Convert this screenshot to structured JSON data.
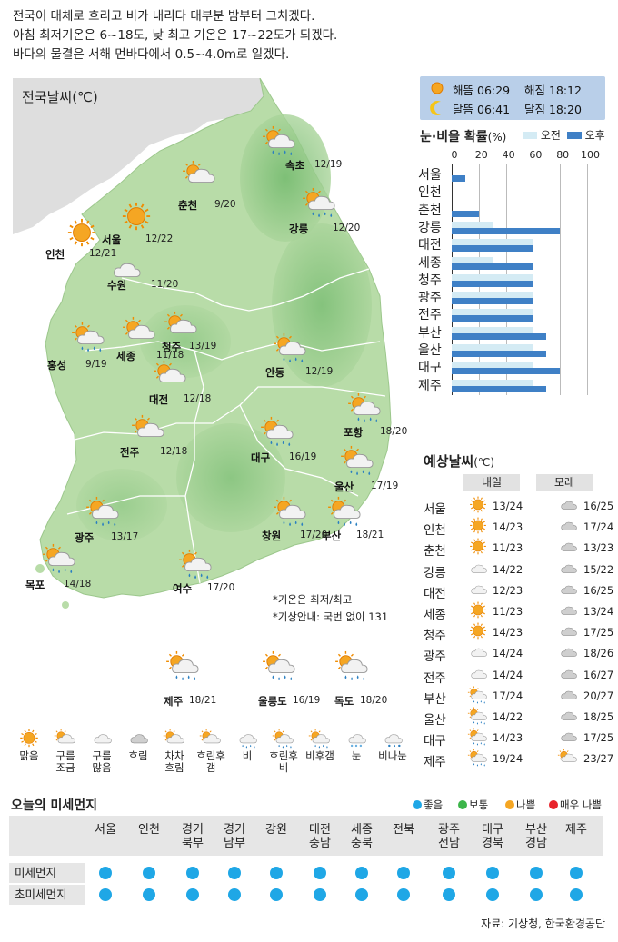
{
  "summary": {
    "line1": "전국이 대체로 흐리고 비가 내리다 대부분 밤부터 그치겠다.",
    "line2": "아침 최저기온은 6~18도, 낮 최고 기온은 17~22도가 되겠다.",
    "line3": "바다의 물결은 서해 먼바다에서 0.5~4.0m로 일겠다."
  },
  "map": {
    "title": "전국날씨(℃)",
    "note1": "*기온은 최저/최고",
    "note2": "*기상안내: 국번 없이 131",
    "cities": [
      {
        "name": "속초",
        "temp": "12/19",
        "icon": "partly-cloudy-rain-icon"
      },
      {
        "name": "춘천",
        "temp": "9/20",
        "icon": "partly-cloudy-icon"
      },
      {
        "name": "서울",
        "temp": "12/22",
        "icon": "sun-icon"
      },
      {
        "name": "인천",
        "temp": "12/21",
        "icon": "sun-icon"
      },
      {
        "name": "강릉",
        "temp": "12/20",
        "icon": "partly-cloudy-rain-icon"
      },
      {
        "name": "수원",
        "temp": "11/20",
        "icon": "cloud-icon"
      },
      {
        "name": "청주",
        "temp": "13/19",
        "icon": "partly-cloudy-icon"
      },
      {
        "name": "세종",
        "temp": "11/18",
        "icon": "partly-cloudy-icon"
      },
      {
        "name": "홍성",
        "temp": "9/19",
        "icon": "partly-cloudy-rain-icon"
      },
      {
        "name": "안동",
        "temp": "12/19",
        "icon": "partly-cloudy-rain-icon"
      },
      {
        "name": "대전",
        "temp": "12/18",
        "icon": "partly-cloudy-icon"
      },
      {
        "name": "포항",
        "temp": "18/20",
        "icon": "partly-cloudy-rain-icon"
      },
      {
        "name": "전주",
        "temp": "12/18",
        "icon": "partly-cloudy-icon"
      },
      {
        "name": "대구",
        "temp": "16/19",
        "icon": "partly-cloudy-rain-icon"
      },
      {
        "name": "울산",
        "temp": "17/19",
        "icon": "partly-cloudy-rain-icon"
      },
      {
        "name": "광주",
        "temp": "13/17",
        "icon": "partly-cloudy-rain-icon"
      },
      {
        "name": "창원",
        "temp": "17/20",
        "icon": "partly-cloudy-rain-icon"
      },
      {
        "name": "부산",
        "temp": "18/21",
        "icon": "partly-cloudy-rain-icon"
      },
      {
        "name": "목포",
        "temp": "14/18",
        "icon": "partly-cloudy-rain-icon"
      },
      {
        "name": "여수",
        "temp": "17/20",
        "icon": "partly-cloudy-rain-icon"
      }
    ],
    "islands": [
      {
        "name": "제주",
        "temp": "18/21"
      },
      {
        "name": "울릉도",
        "temp": "16/19"
      },
      {
        "name": "독도",
        "temp": "18/20"
      }
    ]
  },
  "sun": {
    "rise_label": "해뜸",
    "rise": "06:29",
    "set_label": "해짐",
    "set": "18:12",
    "moonrise_label": "달뜸",
    "moonrise": "06:41",
    "moonset_label": "달짐",
    "moonset": "18:20"
  },
  "precip": {
    "title": "눈·비올 확률",
    "unit": "(%)",
    "am_label": "오전",
    "pm_label": "오후",
    "ticks": [
      "0",
      "20",
      "40",
      "60",
      "80",
      "100"
    ],
    "colors": {
      "am": "#d4ebf4",
      "pm": "#3f80c6"
    }
  },
  "chart_data": {
    "type": "bar",
    "title": "눈·비올 확률(%)",
    "ylim": [
      0,
      100
    ],
    "categories": [
      "서울",
      "인천",
      "춘천",
      "강릉",
      "대전",
      "세종",
      "청주",
      "광주",
      "전주",
      "부산",
      "울산",
      "대구",
      "제주"
    ],
    "series": [
      {
        "name": "오전",
        "values": [
          0,
          0,
          0,
          30,
          60,
          30,
          60,
          60,
          60,
          60,
          60,
          60,
          60
        ]
      },
      {
        "name": "오후",
        "values": [
          10,
          0,
          20,
          80,
          60,
          60,
          60,
          60,
          60,
          70,
          70,
          80,
          70
        ]
      }
    ]
  },
  "forecast": {
    "title": "예상날씨",
    "unit": "(℃)",
    "day1": "내일",
    "day2": "모레",
    "rows": [
      {
        "city": "서울",
        "d1": "13/24",
        "d2": "16/25",
        "i1": "sun",
        "i2": "cloudy"
      },
      {
        "city": "인천",
        "d1": "14/23",
        "d2": "17/24",
        "i1": "sun",
        "i2": "cloudy"
      },
      {
        "city": "춘천",
        "d1": "11/23",
        "d2": "13/23",
        "i1": "sun",
        "i2": "cloudy"
      },
      {
        "city": "강릉",
        "d1": "14/22",
        "d2": "15/22",
        "i1": "cloud",
        "i2": "cloudy"
      },
      {
        "city": "대전",
        "d1": "12/23",
        "d2": "16/25",
        "i1": "cloud",
        "i2": "cloudy"
      },
      {
        "city": "세종",
        "d1": "11/23",
        "d2": "13/24",
        "i1": "sun",
        "i2": "cloudy"
      },
      {
        "city": "청주",
        "d1": "14/23",
        "d2": "17/25",
        "i1": "sun",
        "i2": "cloudy"
      },
      {
        "city": "광주",
        "d1": "14/24",
        "d2": "18/26",
        "i1": "cloud",
        "i2": "cloudy"
      },
      {
        "city": "전주",
        "d1": "14/24",
        "d2": "16/27",
        "i1": "cloud",
        "i2": "cloudy"
      },
      {
        "city": "부산",
        "d1": "17/24",
        "d2": "20/27",
        "i1": "rain",
        "i2": "cloudy"
      },
      {
        "city": "울산",
        "d1": "14/22",
        "d2": "18/25",
        "i1": "rain",
        "i2": "cloudy"
      },
      {
        "city": "대구",
        "d1": "14/23",
        "d2": "17/25",
        "i1": "rain",
        "i2": "cloudy"
      },
      {
        "city": "제주",
        "d1": "19/24",
        "d2": "23/27",
        "i1": "rain",
        "i2": "partly"
      }
    ]
  },
  "legend": [
    {
      "label": "맑음",
      "icon": "sun-icon"
    },
    {
      "label": "구름\n조금",
      "icon": "partly-cloudy-icon"
    },
    {
      "label": "구름\n많음",
      "icon": "cloud-icon"
    },
    {
      "label": "흐림",
      "icon": "overcast-icon"
    },
    {
      "label": "차차\n흐림",
      "icon": "gradually-cloudy-icon"
    },
    {
      "label": "흐린후\n갬",
      "icon": "cloudy-then-clear-icon"
    },
    {
      "label": "비",
      "icon": "rain-icon"
    },
    {
      "label": "흐린후\n비",
      "icon": "cloudy-then-rain-icon"
    },
    {
      "label": "비후갬",
      "icon": "rain-then-clear-icon"
    },
    {
      "label": "눈",
      "icon": "snow-icon"
    },
    {
      "label": "비나눈",
      "icon": "rain-or-snow-icon"
    }
  ],
  "dust": {
    "title": "오늘의 미세먼지",
    "levels": [
      {
        "label": "좋음",
        "color": "#1fa7e6"
      },
      {
        "label": "보통",
        "color": "#3cb54a"
      },
      {
        "label": "나쁨",
        "color": "#f5a623"
      },
      {
        "label": "매우 나쁨",
        "color": "#e8232a"
      }
    ],
    "regions": [
      "서울",
      "인천",
      "경기\n북부",
      "경기\n남부",
      "강원",
      "대전\n충남",
      "세종\n충북",
      "전북",
      "광주\n전남",
      "대구\n경북",
      "부산\n경남",
      "제주"
    ],
    "pm10_label": "미세먼지",
    "pm25_label": "초미세먼지",
    "pm10": [
      "좋음",
      "좋음",
      "좋음",
      "좋음",
      "좋음",
      "좋음",
      "좋음",
      "좋음",
      "좋음",
      "좋음",
      "좋음",
      "좋음"
    ],
    "pm25": [
      "좋음",
      "좋음",
      "좋음",
      "좋음",
      "좋음",
      "좋음",
      "좋음",
      "좋음",
      "좋음",
      "좋음",
      "좋음",
      "좋음"
    ]
  },
  "source": "자료: 기상청, 한국환경공단"
}
